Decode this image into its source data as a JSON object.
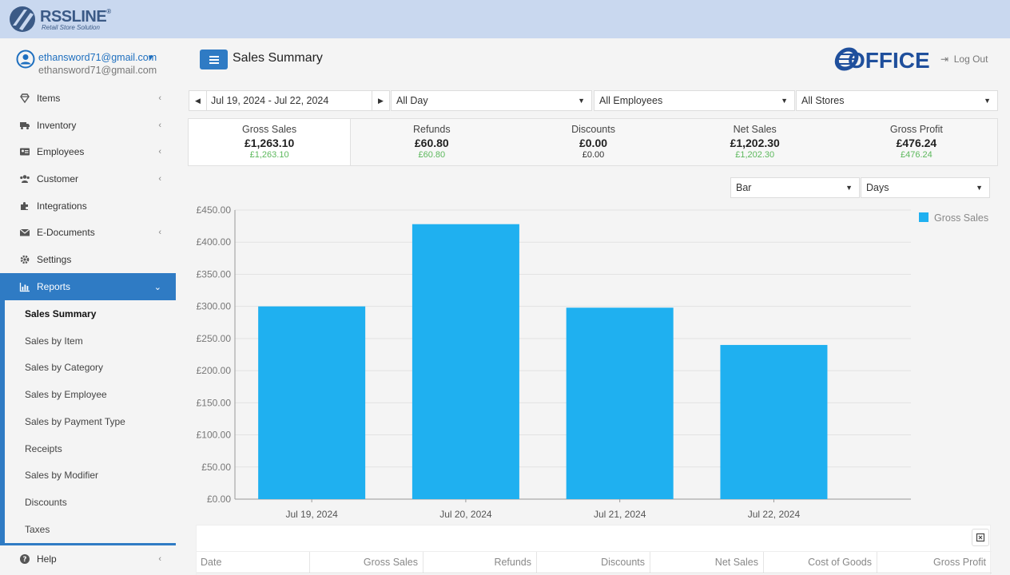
{
  "header": {
    "brand_name": "RSSLINE",
    "brand_reg": "®",
    "brand_tagline": "Retail Store Solution"
  },
  "user": {
    "email": "ethansword71@gmail.com",
    "email_secondary": "ethansword71@gmail.com"
  },
  "sidebar": {
    "items": [
      {
        "label": "Items",
        "icon": "diamond-icon"
      },
      {
        "label": "Inventory",
        "icon": "truck-icon"
      },
      {
        "label": "Employees",
        "icon": "id-card-icon"
      },
      {
        "label": "Customer",
        "icon": "users-icon"
      },
      {
        "label": "Integrations",
        "icon": "puzzle-icon"
      },
      {
        "label": "E-Documents",
        "icon": "envelope-icon"
      },
      {
        "label": "Settings",
        "icon": "gear-icon"
      },
      {
        "label": "Reports",
        "icon": "bar-chart-icon"
      }
    ],
    "reports_sub": [
      "Sales Summary",
      "Sales by Item",
      "Sales by Category",
      "Sales by Employee",
      "Sales by Payment Type",
      "Receipts",
      "Sales by Modifier",
      "Discounts",
      "Taxes"
    ],
    "help_label": "Help"
  },
  "page": {
    "title": "Sales Summary",
    "partner_logo": "OFFICE",
    "logout_label": "Log Out"
  },
  "filters": {
    "date_range": "Jul 19, 2024 - Jul 22, 2024",
    "time": "All Day",
    "employees": "All Employees",
    "stores": "All Stores"
  },
  "summary": [
    {
      "label": "Gross Sales",
      "value": "£1,263.10",
      "sub": "£1,263.10"
    },
    {
      "label": "Refunds",
      "value": "£60.80",
      "sub": "£60.80"
    },
    {
      "label": "Discounts",
      "value": "£0.00",
      "sub": "£0.00"
    },
    {
      "label": "Net Sales",
      "value": "£1,202.30",
      "sub": "£1,202.30"
    },
    {
      "label": "Gross Profit",
      "value": "£476.24",
      "sub": "£476.24"
    }
  ],
  "chart_controls": {
    "type": "Bar",
    "period": "Days"
  },
  "chart_data": {
    "type": "bar",
    "categories": [
      "Jul 19, 2024",
      "Jul 20, 2024",
      "Jul 21, 2024",
      "Jul 22, 2024"
    ],
    "series": [
      {
        "name": "Gross Sales",
        "values": [
          300,
          428,
          298,
          240
        ],
        "color": "#1fb0f0"
      }
    ],
    "ylim": [
      0,
      450
    ],
    "yticks": [
      "£0.00",
      "£50.00",
      "£100.00",
      "£150.00",
      "£200.00",
      "£250.00",
      "£300.00",
      "£350.00",
      "£400.00",
      "£450.00"
    ],
    "grid": true,
    "legend": "top-right",
    "title": "",
    "xlabel": "",
    "ylabel": ""
  },
  "table": {
    "columns": [
      "Date",
      "Gross Sales",
      "Refunds",
      "Discounts",
      "Net Sales",
      "Cost of Goods",
      "Gross Profit"
    ]
  }
}
